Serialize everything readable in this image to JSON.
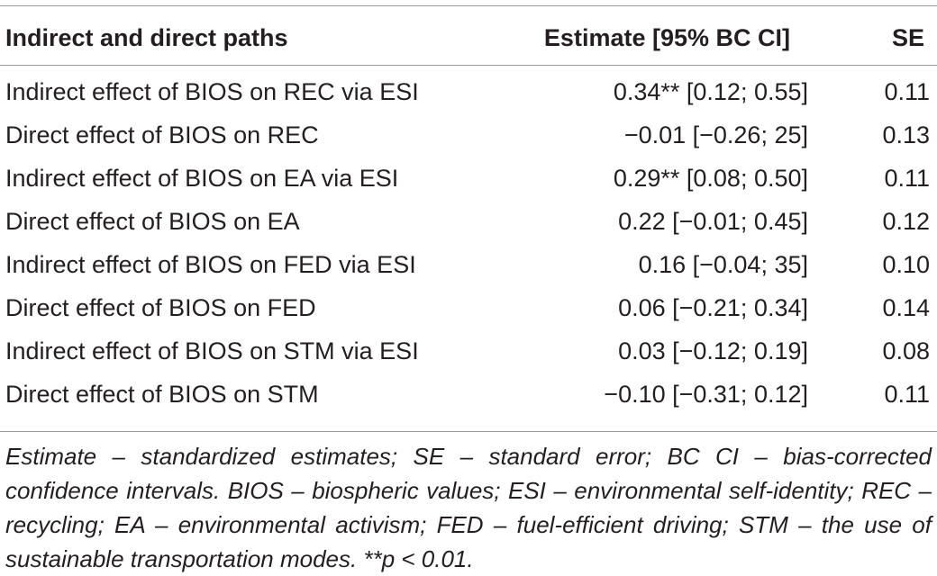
{
  "table": {
    "headers": {
      "path": "Indirect and direct paths",
      "estimate": "Estimate [95% BC CI]",
      "se": "SE"
    },
    "rows": [
      {
        "path": "Indirect effect of BIOS on REC via ESI",
        "estimate": "0.34** [0.12; 0.55]",
        "se": "0.11"
      },
      {
        "path": "Direct effect of BIOS on REC",
        "estimate": "−0.01 [−0.26; 25]",
        "se": "0.13"
      },
      {
        "path": "Indirect effect of BIOS on EA via ESI",
        "estimate": "0.29** [0.08; 0.50]",
        "se": "0.11"
      },
      {
        "path": "Direct effect of BIOS on EA",
        "estimate": "0.22 [−0.01; 0.45]",
        "se": "0.12"
      },
      {
        "path": "Indirect effect of BIOS on FED via ESI",
        "estimate": "0.16 [−0.04; 35]",
        "se": "0.10"
      },
      {
        "path": "Direct effect of BIOS on FED",
        "estimate": "0.06 [−0.21; 0.34]",
        "se": "0.14"
      },
      {
        "path": "Indirect effect of BIOS on STM via ESI",
        "estimate": "0.03 [−0.12; 0.19]",
        "se": "0.08"
      },
      {
        "path": "Direct effect of BIOS on STM",
        "estimate": "−0.10 [−0.31; 0.12]",
        "se": "0.11"
      }
    ]
  },
  "note": "Estimate – standardized estimates; SE – standard error; BC CI – bias-corrected confidence intervals. BIOS – biospheric values; ESI – environmental self-identity; REC – recycling; EA – environmental activism; FED – fuel-efficient driving; STM – the use of sustainable transportation modes. **p < 0.01."
}
